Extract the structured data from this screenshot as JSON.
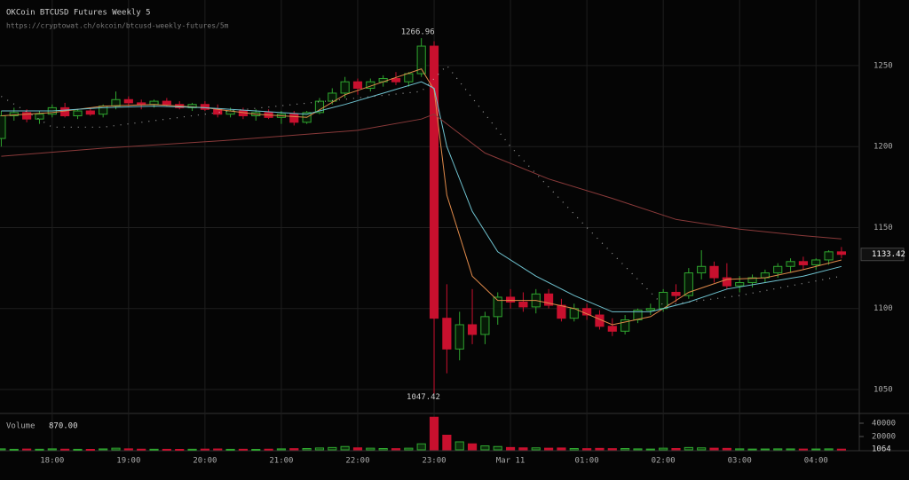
{
  "chart_data": {
    "type": "candlestick",
    "title": "OKCoin BTCUSD Futures Weekly 5",
    "subtitle": "https://cryptowat.ch/okcoin/btcusd-weekly-futures/5m",
    "x": [
      20,
      30,
      40,
      50,
      60,
      70,
      80,
      90,
      100,
      110,
      120,
      130,
      140,
      150,
      160,
      170,
      180,
      190,
      200,
      210,
      220,
      230,
      240,
      250,
      260,
      270,
      280,
      290,
      300,
      310,
      320,
      330,
      340,
      350,
      360,
      370,
      380,
      390,
      400,
      410,
      420,
      430,
      440,
      450,
      460,
      470,
      480,
      490,
      500,
      510,
      520,
      530,
      540,
      550,
      560,
      570,
      580,
      590,
      600,
      610,
      620,
      630,
      640,
      650,
      660,
      670,
      680
    ],
    "open": [
      1205,
      1219,
      1221,
      1217,
      1220,
      1224,
      1219,
      1222,
      1220,
      1225,
      1229,
      1227,
      1226,
      1228,
      1226,
      1224,
      1226,
      1223,
      1220,
      1222,
      1219,
      1221,
      1218,
      1220,
      1215,
      1221,
      1228,
      1233,
      1240,
      1236,
      1240,
      1242,
      1240,
      1245,
      1262,
      1094,
      1075,
      1090,
      1084,
      1095,
      1107,
      1104,
      1101,
      1109,
      1102,
      1094,
      1100,
      1096,
      1089,
      1086,
      1093,
      1099,
      1100,
      1110,
      1108,
      1122,
      1126,
      1119,
      1114,
      1116,
      1119,
      1122,
      1126,
      1129,
      1127,
      1130,
      1135
    ],
    "high": [
      1222,
      1224,
      1223,
      1222,
      1226,
      1227,
      1223,
      1224,
      1226,
      1234,
      1231,
      1229,
      1229,
      1230,
      1228,
      1227,
      1228,
      1226,
      1224,
      1224,
      1223,
      1223,
      1222,
      1222,
      1222,
      1230,
      1236,
      1243,
      1242,
      1242,
      1244,
      1246,
      1246,
      1266.96,
      1265,
      1115,
      1098,
      1112,
      1098,
      1110,
      1112,
      1110,
      1112,
      1112,
      1106,
      1103,
      1103,
      1099,
      1094,
      1096,
      1100,
      1103,
      1112,
      1115,
      1125,
      1136,
      1129,
      1128,
      1120,
      1121,
      1124,
      1128,
      1131,
      1132,
      1131,
      1136,
      1138
    ],
    "low": [
      1200,
      1216,
      1215,
      1214,
      1218,
      1218,
      1217,
      1219,
      1218,
      1223,
      1225,
      1223,
      1224,
      1225,
      1223,
      1222,
      1222,
      1218,
      1218,
      1217,
      1216,
      1217,
      1214,
      1213,
      1214,
      1220,
      1226,
      1230,
      1232,
      1234,
      1237,
      1238,
      1237,
      1243,
      1047.42,
      1060,
      1068,
      1078,
      1078,
      1090,
      1100,
      1098,
      1097,
      1100,
      1092,
      1092,
      1093,
      1087,
      1083,
      1084,
      1091,
      1096,
      1098,
      1104,
      1106,
      1118,
      1116,
      1112,
      1110,
      1113,
      1116,
      1119,
      1122,
      1124,
      1124,
      1127,
      1131
    ],
    "close": [
      1219,
      1221,
      1217,
      1220,
      1224,
      1219,
      1222,
      1220,
      1225,
      1229,
      1227,
      1226,
      1228,
      1226,
      1224,
      1226,
      1223,
      1220,
      1222,
      1219,
      1221,
      1218,
      1220,
      1215,
      1221,
      1228,
      1233,
      1240,
      1236,
      1240,
      1242,
      1240,
      1245,
      1262,
      1094,
      1075,
      1090,
      1084,
      1095,
      1107,
      1104,
      1101,
      1109,
      1102,
      1094,
      1100,
      1096,
      1089,
      1086,
      1093,
      1099,
      1100,
      1110,
      1108,
      1122,
      1126,
      1119,
      1114,
      1116,
      1119,
      1122,
      1126,
      1129,
      1127,
      1130,
      1135,
      1133.42
    ],
    "up_color": "#2fa52f",
    "down_color": "#c8102e",
    "xlim": [
      19,
      694
    ],
    "xticks": [
      {
        "value": 60,
        "label": "18:00"
      },
      {
        "value": 120,
        "label": "19:00"
      },
      {
        "value": 180,
        "label": "20:00"
      },
      {
        "value": 240,
        "label": "21:00"
      },
      {
        "value": 300,
        "label": "22:00"
      },
      {
        "value": 360,
        "label": "23:00"
      },
      {
        "value": 420,
        "label": "Mar 11"
      },
      {
        "value": 480,
        "label": "01:00"
      },
      {
        "value": 540,
        "label": "02:00"
      },
      {
        "value": 600,
        "label": "03:00"
      },
      {
        "value": 660,
        "label": "04:00"
      }
    ],
    "ylim": [
      1037.4,
      1290.5
    ],
    "yticks": [
      1050,
      1100,
      1150,
      1200,
      1250
    ],
    "grid": true,
    "lines": [
      {
        "color": "#e08a4a",
        "style": "solid",
        "x": [
          20,
          60,
          100,
          140,
          180,
          220,
          260,
          290,
          320,
          350,
          360,
          370,
          390,
          410,
          440,
          470,
          500,
          530,
          560,
          590,
          620,
          650,
          680
        ],
        "values": [
          1219,
          1221,
          1225,
          1226,
          1224,
          1220,
          1218,
          1232,
          1240,
          1248,
          1235,
          1170,
          1120,
          1105,
          1105,
          1100,
          1090,
          1095,
          1110,
          1118,
          1119,
          1124,
          1130
        ]
      },
      {
        "color": "#6fc3d0",
        "style": "solid",
        "x": [
          20,
          60,
          100,
          140,
          180,
          220,
          260,
          290,
          320,
          350,
          360,
          370,
          390,
          410,
          440,
          470,
          500,
          530,
          560,
          590,
          620,
          650,
          680
        ],
        "values": [
          1222,
          1222,
          1224,
          1225,
          1224,
          1222,
          1220,
          1226,
          1233,
          1240,
          1236,
          1200,
          1160,
          1135,
          1120,
          1108,
          1098,
          1098,
          1104,
          1112,
          1116,
          1120,
          1126
        ]
      },
      {
        "color": "#8a3a3a",
        "style": "solid",
        "x": [
          20,
          100,
          200,
          300,
          350,
          360,
          400,
          450,
          500,
          550,
          600,
          650,
          680
        ],
        "values": [
          1194,
          1199,
          1204,
          1210,
          1217,
          1220,
          1196,
          1180,
          1168,
          1155,
          1149,
          1145,
          1143
        ]
      },
      {
        "color": "#dddddd",
        "style": "dotted",
        "x": [
          20,
          60,
          100,
          200,
          300,
          350,
          370,
          420,
          480,
          540,
          600,
          680
        ],
        "values": [
          1231,
          1212,
          1212,
          1222,
          1230,
          1234,
          1250,
          1200,
          1150,
          1102,
          1108,
          1120
        ]
      }
    ],
    "volume": {
      "name": "Volume",
      "readout": "870.00",
      "values": [
        1500,
        800,
        1200,
        900,
        1500,
        1000,
        800,
        700,
        1400,
        2500,
        1500,
        1000,
        900,
        800,
        700,
        900,
        1100,
        1300,
        800,
        900,
        700,
        1000,
        1500,
        1800,
        2000,
        2800,
        3500,
        5000,
        3000,
        2500,
        2000,
        1800,
        2500,
        9000,
        49000,
        22000,
        12000,
        9000,
        6000,
        5000,
        3500,
        3000,
        3000,
        2500,
        2800,
        2000,
        1800,
        2200,
        1800,
        2000,
        1500,
        1200,
        2500,
        2000,
        3500,
        3000,
        2500,
        2200,
        1500,
        1200,
        1300,
        1500,
        1400,
        1200,
        1300,
        1500,
        1064
      ],
      "ylim": [
        0,
        49333
      ],
      "yticks": [
        20000,
        40000
      ]
    }
  }
}
